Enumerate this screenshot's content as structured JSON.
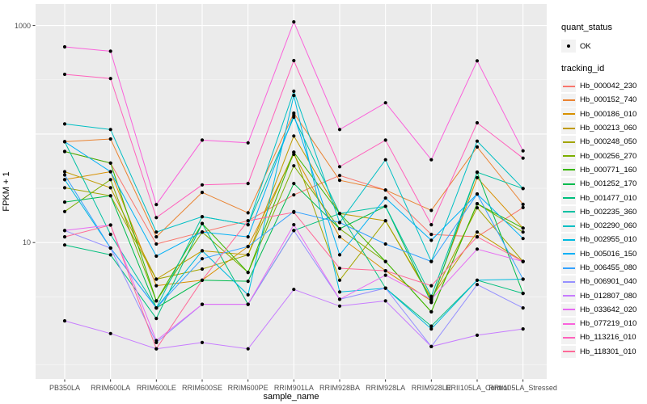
{
  "chart_data": {
    "type": "line",
    "title": "",
    "xlabel": "sample_name",
    "ylabel": "FPKM + 1",
    "y_scale": "log10",
    "ylim": [
      0.55,
      1580
    ],
    "grid": true,
    "panel_bg": "#EBEBEB",
    "grid_color": "#FFFFFF",
    "axis_text_color": "#4D4D4D",
    "legend_key_bg": "#F2F2F2",
    "point_color": "#000000",
    "y_axis_ticks": [
      {
        "label": "1000",
        "value": 1000
      },
      {
        "label": "10",
        "value": 10
      }
    ],
    "y_gridlines_major": [
      10,
      100,
      1000
    ],
    "y_gridlines_minor": [
      0.75,
      3.162,
      31.62,
      316.2
    ],
    "categories": [
      "PB350LA",
      "RRIM600LA",
      "RRIM600LE",
      "RRIM600SE",
      "RRIM600PE",
      "RRIM901LA",
      "RRIM928BA",
      "RRIM928LA",
      "RRIM928LE",
      "RRII105LA_Control",
      "RRII105LA_Stressed"
    ],
    "legend": {
      "quant_status": {
        "title": "quant_status",
        "items": [
          {
            "label": "OK",
            "symbol": "point"
          }
        ]
      },
      "tracking_id": {
        "title": "tracking_id"
      }
    },
    "series": [
      {
        "name": "Hb_000042_230",
        "color": "#F8766D",
        "values": [
          69,
          54,
          9.7,
          12.5,
          15.9,
          27.5,
          41.5,
          30.5,
          11.9,
          11.3,
          21
        ]
      },
      {
        "name": "Hb_000152_740",
        "color": "#EA8331",
        "values": [
          85,
          90,
          11.3,
          29,
          18.8,
          156,
          37.5,
          30.5,
          19.8,
          76,
          22.5
        ]
      },
      {
        "name": "Hb_000186_010",
        "color": "#D89000",
        "values": [
          38,
          45,
          4.0,
          4.5,
          9.2,
          65,
          11.3,
          5.5,
          2.9,
          39.6,
          13.6
        ]
      },
      {
        "name": "Hb_000213_060",
        "color": "#C09B00",
        "values": [
          45,
          32,
          4.6,
          8.4,
          7.7,
          96,
          18.5,
          15.9,
          3.1,
          12.5,
          6.7
        ]
      },
      {
        "name": "Hb_000248_050",
        "color": "#A3A500",
        "values": [
          32,
          27,
          4.6,
          5.7,
          7.7,
          68,
          4.5,
          15.9,
          3.0,
          20.9,
          6.7
        ]
      },
      {
        "name": "Hb_000256_270",
        "color": "#7CAE00",
        "values": [
          19.3,
          38,
          2.9,
          12.5,
          5.3,
          51,
          13.4,
          6.7,
          2.3,
          22.8,
          12.5
        ]
      },
      {
        "name": "Hb_000771_160",
        "color": "#39B600",
        "values": [
          69,
          54,
          2.9,
          15.0,
          5.3,
          68,
          18.5,
          6.7,
          2.3,
          22.8,
          13.6
        ]
      },
      {
        "name": "Hb_001252_170",
        "color": "#00BB4E",
        "values": [
          23.6,
          27,
          2.5,
          4.5,
          4.4,
          35,
          13.4,
          21.6,
          2.8,
          44.5,
          3.4
        ]
      },
      {
        "name": "Hb_001477_010",
        "color": "#00BF7D",
        "values": [
          9.5,
          7.7,
          2.0,
          15.0,
          2.7,
          12.9,
          18.5,
          3.8,
          1.7,
          4.5,
          3.4
        ]
      },
      {
        "name": "Hb_002235_360",
        "color": "#00C1A3",
        "values": [
          85,
          11.9,
          2.5,
          17.3,
          14.6,
          143,
          18.5,
          21.6,
          3.2,
          44.5,
          31.5
        ]
      },
      {
        "name": "Hb_002290_060",
        "color": "#00BFC4",
        "values": [
          124,
          110,
          12.5,
          17.3,
          14.6,
          248,
          15.3,
          58,
          6.7,
          86,
          31.5
        ]
      },
      {
        "name": "Hb_002955_010",
        "color": "#00BAE0",
        "values": [
          38,
          8.9,
          2.5,
          8.4,
          3.3,
          227,
          3.5,
          3.8,
          1.6,
          4.5,
          4.6
        ]
      },
      {
        "name": "Hb_005016_150",
        "color": "#00B0F6",
        "values": [
          85,
          45,
          7.5,
          12.5,
          11.3,
          150,
          7.7,
          25.7,
          10.5,
          28,
          10.9
        ]
      },
      {
        "name": "Hb_006455_080",
        "color": "#35A2FF",
        "values": [
          42,
          8.9,
          2.5,
          7.1,
          9.2,
          19.3,
          15.3,
          9.7,
          6.7,
          28,
          4.6
        ]
      },
      {
        "name": "Hb_006901_040",
        "color": "#9590FF",
        "values": [
          12.9,
          8.9,
          1.2,
          2.7,
          2.7,
          12.9,
          3.0,
          3.8,
          1.1,
          4.1,
          2.5
        ]
      },
      {
        "name": "Hb_012807_080",
        "color": "#C77CFF",
        "values": [
          1.9,
          1.45,
          1.05,
          1.2,
          1.05,
          3.7,
          2.6,
          2.9,
          1.1,
          1.4,
          1.6
        ]
      },
      {
        "name": "Hb_033642_020",
        "color": "#E76BF3",
        "values": [
          12.9,
          14.5,
          1.25,
          2.7,
          2.7,
          14.6,
          3.0,
          5.0,
          3.0,
          8.7,
          6.7
        ]
      },
      {
        "name": "Hb_077219_010",
        "color": "#FA62DB",
        "values": [
          636,
          580,
          22.4,
          88,
          83,
          1080,
          110,
          194,
          58,
          473,
          70
        ]
      },
      {
        "name": "Hb_113216_010",
        "color": "#FF62BC",
        "values": [
          355,
          325,
          17,
          34,
          35,
          475,
          50,
          88,
          14.6,
          127,
          60
        ]
      },
      {
        "name": "Hb_118301_010",
        "color": "#FF6A98",
        "values": [
          11.3,
          14.5,
          1.05,
          4.5,
          15.9,
          19,
          5.8,
          5.5,
          4.0,
          11.3,
          6.7
        ]
      }
    ]
  }
}
